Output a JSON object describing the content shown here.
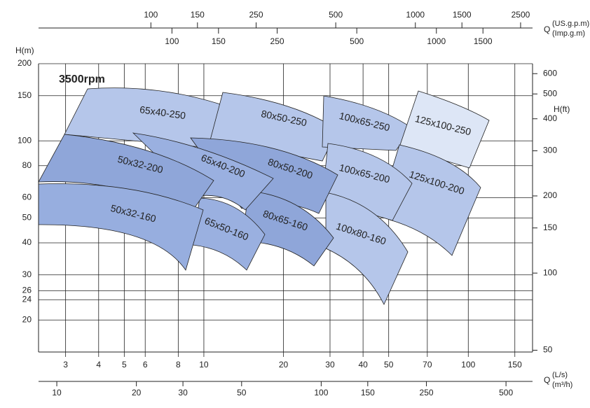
{
  "chart_data": {
    "type": "region",
    "title": "3500rpm",
    "y_label": "H(m)",
    "ylim": [
      15,
      200
    ],
    "yticks": [
      20,
      24,
      26,
      30,
      40,
      50,
      60,
      80,
      100,
      150,
      200
    ],
    "y2_label": "H(ft)",
    "y2lim": [
      49.2,
      656.2
    ],
    "y2ticks": [
      50,
      100,
      150,
      200,
      300,
      400,
      500,
      600
    ],
    "log_scale": true,
    "grid": true,
    "x_label": "Q",
    "x_unit": "(L/s)",
    "xlim": [
      2.37,
      175
    ],
    "xticks": [
      3,
      4,
      5,
      6,
      8,
      10,
      20,
      30,
      40,
      50,
      70,
      100,
      150
    ],
    "x2_unit": "(m³/h)",
    "x2lim": [
      8.53,
      630
    ],
    "x2ticks": [
      10,
      20,
      30,
      50,
      100,
      150,
      250,
      500
    ],
    "top_x_label": "Q",
    "x3_unit": "(US.g.p.m)",
    "x3lim": [
      37.6,
      2774
    ],
    "x3ticks": [
      100,
      150,
      250,
      500,
      1000,
      1500,
      2500
    ],
    "x4_unit": "(Imp.g.m)",
    "x4lim": [
      31.3,
      2310
    ],
    "x4ticks": [
      100,
      150,
      250,
      500,
      1000,
      1500
    ],
    "regions": [
      {
        "label": "65x40-250",
        "color": "#b5c6ea"
      },
      {
        "label": "80x50-250",
        "color": "#b5c6ea"
      },
      {
        "label": "100x65-250",
        "color": "#b5c6ea"
      },
      {
        "label": "125x100-250",
        "color": "#dde6f6"
      },
      {
        "label": "125x100-200",
        "color": "#b5c6ea"
      },
      {
        "label": "100x65-200",
        "color": "#b5c6ea"
      },
      {
        "label": "100x80-160",
        "color": "#b5c6ea"
      },
      {
        "label": "80x50-200",
        "color": "#8fa6d9"
      },
      {
        "label": "80x65-160",
        "color": "#8fa6d9"
      },
      {
        "label": "65x40-200",
        "color": "#9ab0e0"
      },
      {
        "label": "65x50-160",
        "color": "#9ab0e0"
      },
      {
        "label": "50x32-200",
        "color": "#8fa6d9"
      },
      {
        "label": "50x32-160",
        "color": "#97aedf"
      }
    ]
  }
}
